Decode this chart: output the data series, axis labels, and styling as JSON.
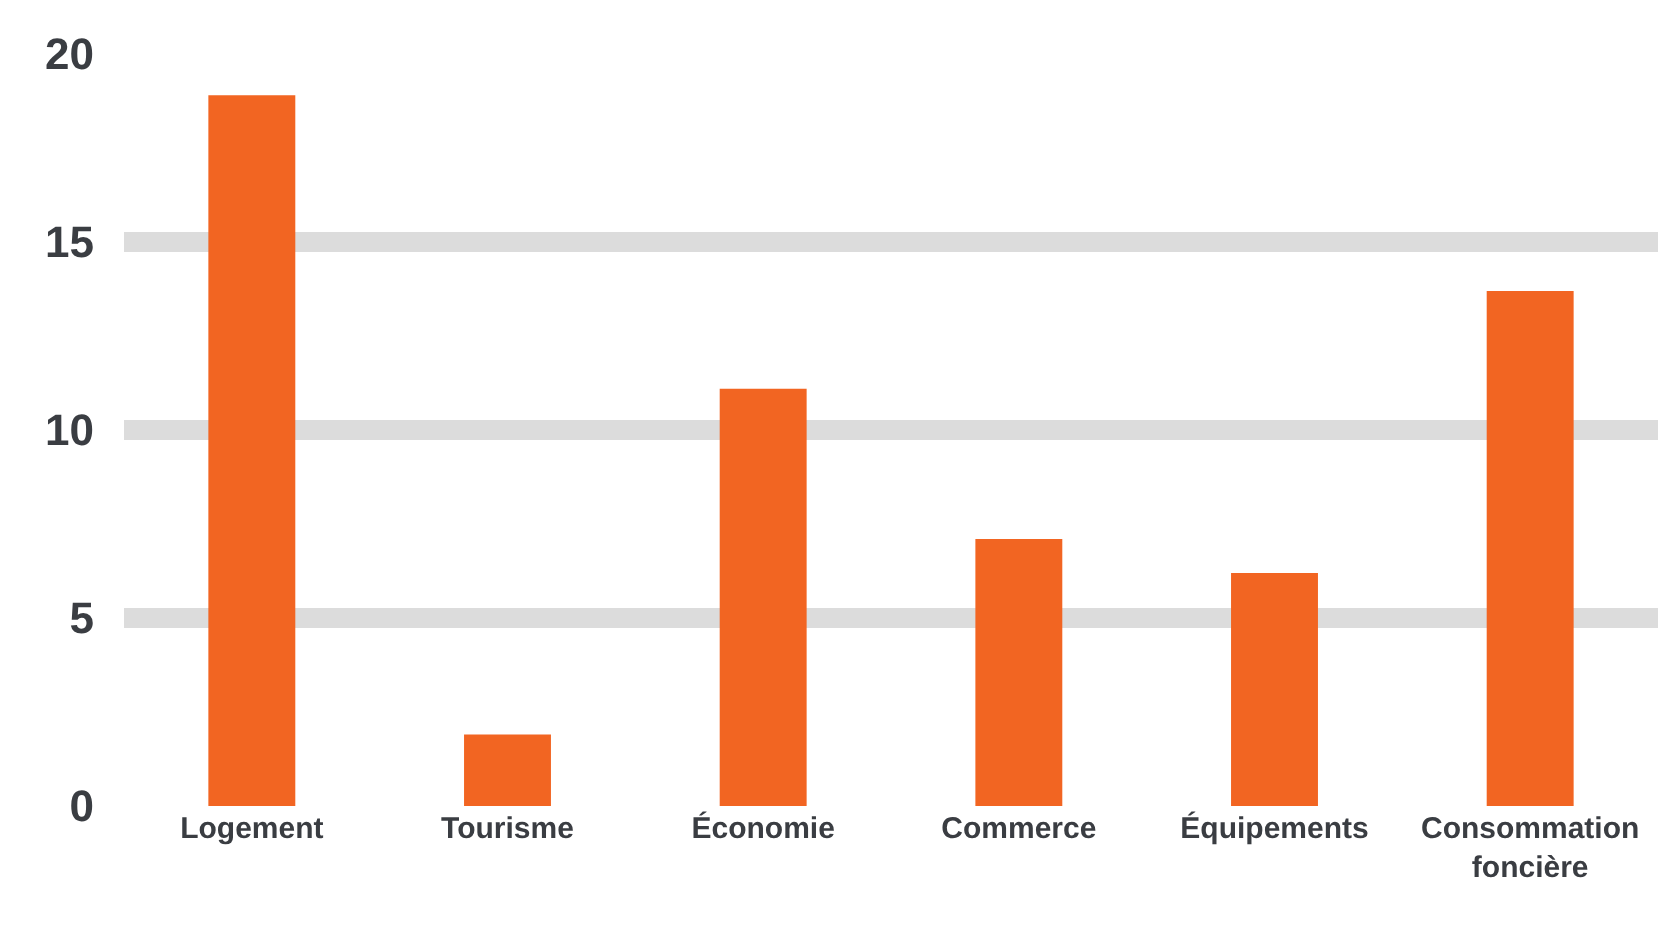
{
  "chart_data": {
    "type": "bar",
    "categories": [
      "Logement",
      "Tourisme",
      "Économie",
      "Commerce",
      "Équipements",
      "Consommation foncière"
    ],
    "values": [
      18.9,
      1.9,
      11.1,
      7.1,
      6.2,
      13.7
    ],
    "color": "#f26522",
    "ylim": [
      0,
      20
    ],
    "yticks": [
      0,
      5,
      10,
      15,
      20
    ],
    "grid": "y",
    "legend": false
  }
}
